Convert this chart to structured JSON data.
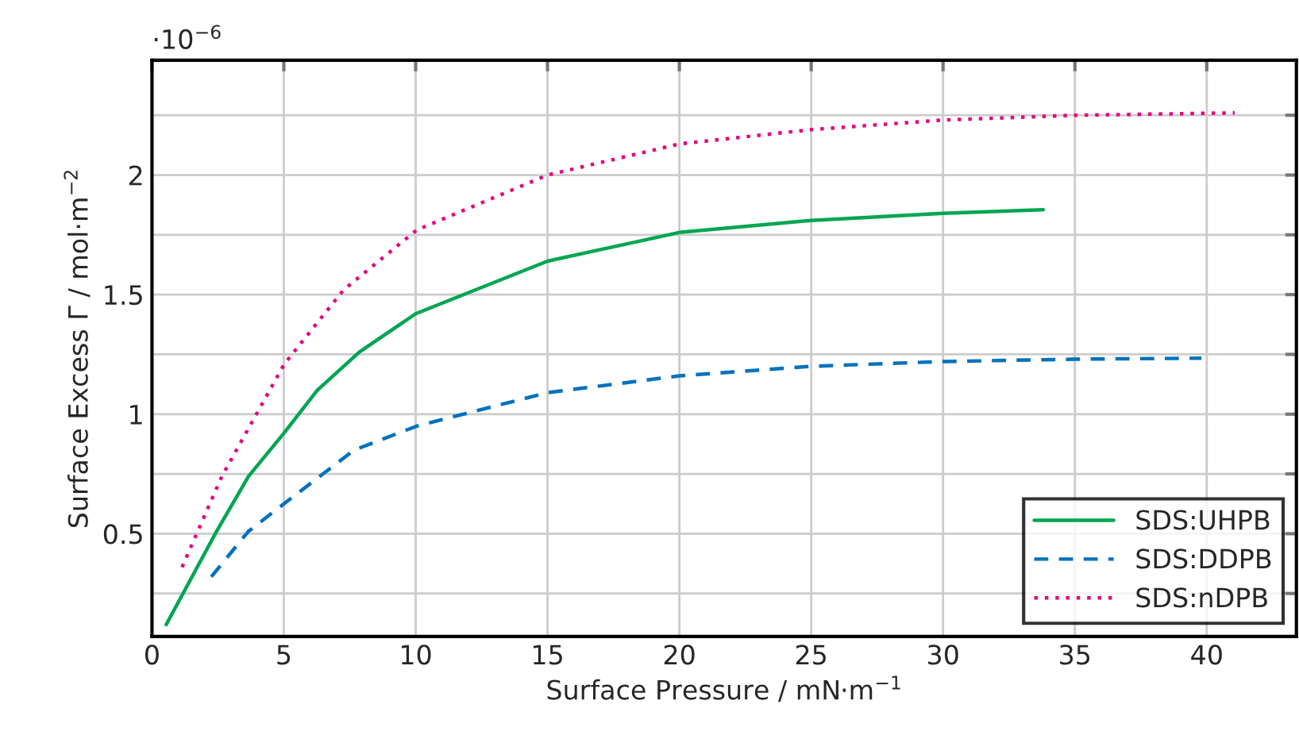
{
  "chart_data": {
    "type": "line",
    "xlabel": "Surface Pressure / mN·m$^{−1}$",
    "ylabel": "Surface Excess Γ / mol·m$^{−2}$",
    "annotations": [
      "·10$^{−6}$"
    ],
    "xlim": [
      0,
      43.4
    ],
    "xticks": [
      0,
      5,
      10,
      15,
      20,
      25,
      30,
      35,
      40
    ],
    "ylim": [
      0.07,
      2.48
    ],
    "yticks": [
      {
        "value": 0.25,
        "label": null
      },
      0.5,
      {
        "value": 0.75,
        "label": null
      },
      1,
      {
        "value": 1.25,
        "label": null
      },
      1.5,
      {
        "value": 1.75,
        "label": null
      },
      2,
      {
        "value": 2.25,
        "label": null
      }
    ],
    "grid": true,
    "legend": "bottom right",
    "series": [
      {
        "name": "SDS:UHPB",
        "color": "#00a651",
        "line_style": "solid",
        "x": [
          0.54,
          2.45,
          3.66,
          5.0,
          6.27,
          7.87,
          10.0,
          15.0,
          20.0,
          25.0,
          30.0,
          33.8
        ],
        "values": [
          0.12,
          0.51,
          0.74,
          0.92,
          1.1,
          1.26,
          1.42,
          1.64,
          1.76,
          1.81,
          1.84,
          1.855
        ]
      },
      {
        "name": "SDS:DDPB",
        "color": "#0072bd",
        "line_style": "dashed",
        "x": [
          2.25,
          3.66,
          5.06,
          7.67,
          10.04,
          15.0,
          20.0,
          25.0,
          30.0,
          35.0,
          39.8
        ],
        "values": [
          0.32,
          0.51,
          0.63,
          0.85,
          0.95,
          1.09,
          1.16,
          1.2,
          1.22,
          1.23,
          1.234
        ]
      },
      {
        "name": "SDS:nDPB",
        "color": "#e6007e",
        "line_style": "dotted",
        "x": [
          1.14,
          2.65,
          5.02,
          7.27,
          10.04,
          15.0,
          20.0,
          25.0,
          30.0,
          35.0,
          41.06
        ],
        "values": [
          0.36,
          0.74,
          1.21,
          1.52,
          1.77,
          2.0,
          2.13,
          2.19,
          2.23,
          2.25,
          2.26
        ]
      }
    ]
  }
}
